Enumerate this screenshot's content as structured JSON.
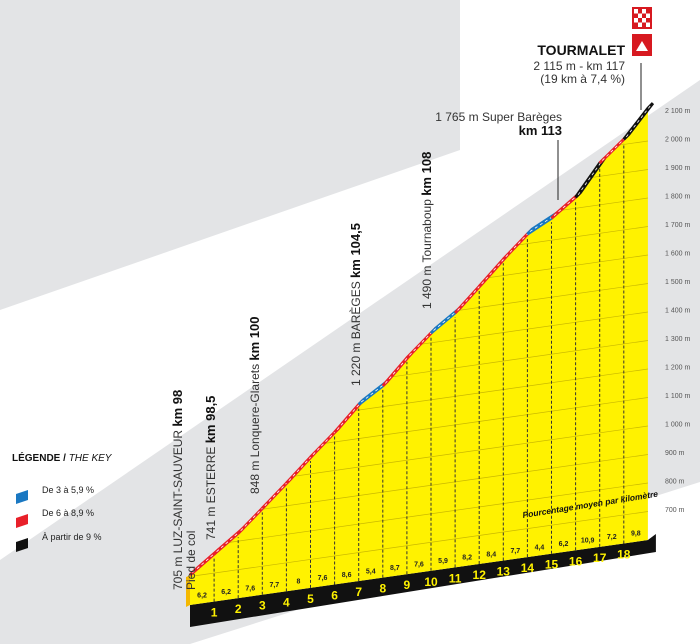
{
  "chart_data": {
    "type": "area",
    "title": "TOURMALET",
    "summit": "2 115 m - km 117",
    "summary": "(19 km à 7,4 %)",
    "start_elevation": 705,
    "end_elevation": 2115,
    "km_labels": [
      "1",
      "2",
      "3",
      "4",
      "5",
      "6",
      "7",
      "8",
      "9",
      "10",
      "11",
      "12",
      "13",
      "14",
      "15",
      "16",
      "17",
      "18"
    ],
    "gradients": [
      6.2,
      6.2,
      7.6,
      7.7,
      8,
      7.6,
      8.6,
      5.4,
      8.7,
      7.6,
      5.9,
      8.2,
      8.4,
      7.7,
      4.4,
      6.2,
      10.9,
      7.2,
      9.8
    ],
    "gradient_labels": [
      "6,2",
      "6,2",
      "7,6",
      "7,7",
      "8",
      "7,6",
      "8,6",
      "5,4",
      "8,7",
      "7,6",
      "5,9",
      "8,2",
      "8,4",
      "7,7",
      "4,4",
      "6,2",
      "10,9",
      "7,2",
      "9,8"
    ],
    "ylim": [
      700,
      2100
    ],
    "y_ticks": [
      700,
      800,
      900,
      1000,
      1100,
      1200,
      1300,
      1400,
      1500,
      1600,
      1700,
      1800,
      1900,
      2000,
      2100
    ],
    "y_tick_labels": [
      "700 m",
      "800 m",
      "900 m",
      "1 000 m",
      "1 100 m",
      "1 200 m",
      "1 300 m",
      "1 400 m",
      "1 500 m",
      "1 600 m",
      "1 700 m",
      "1 800 m",
      "1 900 m",
      "2 000 m",
      "2 100 m"
    ],
    "note": "Pourcentage moyen par kilomètre",
    "annotations": [
      {
        "elev": "705 m LUZ-SAINT-SAUVEUR ",
        "km": "km 98",
        "sub": "Pied de col"
      },
      {
        "elev": "741 m ESTERRE ",
        "km": "km 98,5"
      },
      {
        "elev": "848 m Lonquere-Glarets ",
        "km": "km 100"
      },
      {
        "elev": "1 220 m BARÈGES ",
        "km": "km 104,5"
      },
      {
        "elev": "1 490 m Tournaboup ",
        "km": "km 108"
      },
      {
        "elev": "1 765 m Super Barèges",
        "km": "km 113"
      }
    ],
    "legend": {
      "title": "LÉGENDE / ",
      "title_italic": "THE KEY",
      "items": [
        {
          "label": "De 3 à 5,9 %",
          "color": "#1a78c2"
        },
        {
          "label": "De 6 à 8,9 %",
          "color": "#e8202a"
        },
        {
          "label": "À partir de 9 %",
          "color": "#111111"
        }
      ]
    },
    "colors": {
      "yellow": "#fff200",
      "red": "#e8202a",
      "blue": "#1a78c2",
      "black": "#111111",
      "grey": "#e3e4e6"
    }
  }
}
